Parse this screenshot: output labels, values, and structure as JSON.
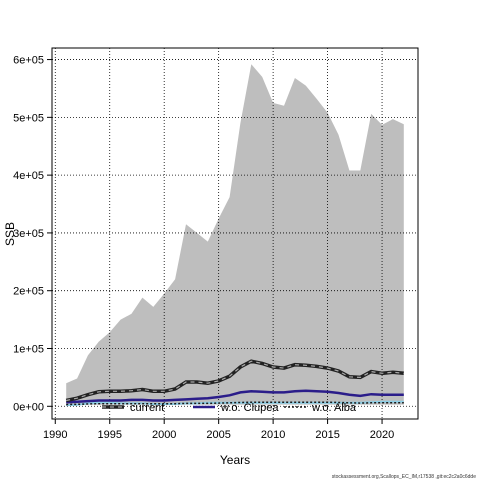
{
  "chart_data": {
    "type": "area",
    "xlabel": "Years",
    "ylabel": "SSB",
    "xlim": [
      1989.7,
      2023.3
    ],
    "ylim": [
      -22000,
      620000
    ],
    "x_ticks": [
      1990,
      1995,
      2000,
      2005,
      2010,
      2015,
      2020
    ],
    "x_tick_labels": [
      "1990",
      "1995",
      "2000",
      "2005",
      "2010",
      "2015",
      "2020"
    ],
    "y_ticks": [
      0,
      100000,
      200000,
      300000,
      400000,
      500000,
      600000
    ],
    "y_tick_labels": [
      "0e+00",
      "1e+05",
      "2e+05",
      "3e+05",
      "4e+05",
      "5e+05",
      "6e+05"
    ],
    "grid": true,
    "legend_position": "bottom",
    "colors": {
      "band_fill": "#bebebe",
      "current": "#222222",
      "current_dash": "#aaaaaa",
      "clupea": "#2b1d8a",
      "alba": "#1a1a1a",
      "lightblue": "#8ecfe6",
      "grid": "#000000"
    },
    "x": [
      1991,
      1992,
      1993,
      1994,
      1995,
      1996,
      1997,
      1998,
      1999,
      2000,
      2001,
      2002,
      2003,
      2004,
      2005,
      2006,
      2007,
      2008,
      2009,
      2010,
      2011,
      2012,
      2013,
      2014,
      2015,
      2016,
      2017,
      2018,
      2019,
      2020,
      2021,
      2022
    ],
    "band": {
      "upper": [
        40000,
        48000,
        88000,
        112000,
        128000,
        150000,
        160000,
        188000,
        172000,
        195000,
        220000,
        315000,
        300000,
        285000,
        325000,
        362000,
        490000,
        592000,
        570000,
        525000,
        520000,
        568000,
        555000,
        532000,
        508000,
        470000,
        408000,
        408000,
        506000,
        487000,
        497000,
        488000
      ],
      "lower": [
        2000,
        2000,
        3000,
        3000,
        3000,
        3000,
        3000,
        3000,
        3000,
        3000,
        3000,
        3000,
        3000,
        3000,
        3000,
        3000,
        3000,
        3000,
        3000,
        3000,
        3000,
        3000,
        3000,
        3000,
        3000,
        3000,
        3000,
        3000,
        3000,
        3000,
        3000,
        3000
      ]
    },
    "series": [
      {
        "name": "current",
        "style": "dashed-thick",
        "values": [
          10000,
          14000,
          20000,
          25000,
          26000,
          26000,
          27000,
          29000,
          26000,
          26000,
          30000,
          42000,
          42000,
          40000,
          44000,
          52000,
          68000,
          78000,
          74000,
          68000,
          66000,
          72000,
          71000,
          69000,
          66000,
          61000,
          51000,
          50000,
          60000,
          57000,
          59000,
          57000
        ]
      },
      {
        "name": "w.o. Clupea",
        "style": "solid",
        "values": [
          7000,
          8000,
          9000,
          10000,
          10000,
          10000,
          11000,
          11000,
          10000,
          10000,
          11000,
          12000,
          13000,
          14000,
          16000,
          19000,
          24000,
          26000,
          25000,
          24000,
          24000,
          26000,
          27000,
          26000,
          25000,
          23000,
          20000,
          18000,
          21000,
          20000,
          20000,
          20000
        ]
      },
      {
        "name": "w.o. Alba",
        "style": "dotted",
        "values": [
          3000,
          3500,
          4000,
          4500,
          4500,
          4500,
          4500,
          4500,
          4500,
          4500,
          4500,
          5000,
          5000,
          5000,
          5500,
          6000,
          6500,
          7000,
          7000,
          7000,
          7000,
          7000,
          7000,
          7000,
          7000,
          6500,
          6000,
          5500,
          6000,
          6000,
          6000,
          6000
        ]
      },
      {
        "values": [
          2000,
          2500,
          5000,
          6000,
          6000,
          5000,
          5000,
          5000,
          4000,
          4000,
          4000,
          5000,
          5000,
          6000,
          6000,
          6000,
          6000,
          6000,
          6000,
          6000,
          6000,
          6000,
          6000,
          6000,
          6000,
          6000,
          6000,
          6000,
          7000,
          8000,
          8000,
          8000
        ]
      }
    ],
    "legend": [
      "current",
      "w.o. Clupea",
      "w.o. Alba"
    ]
  },
  "footer_text": "stockassessment.org,Scallops_EC_IM,r17538 ,git:ec2c2a0c6dde"
}
